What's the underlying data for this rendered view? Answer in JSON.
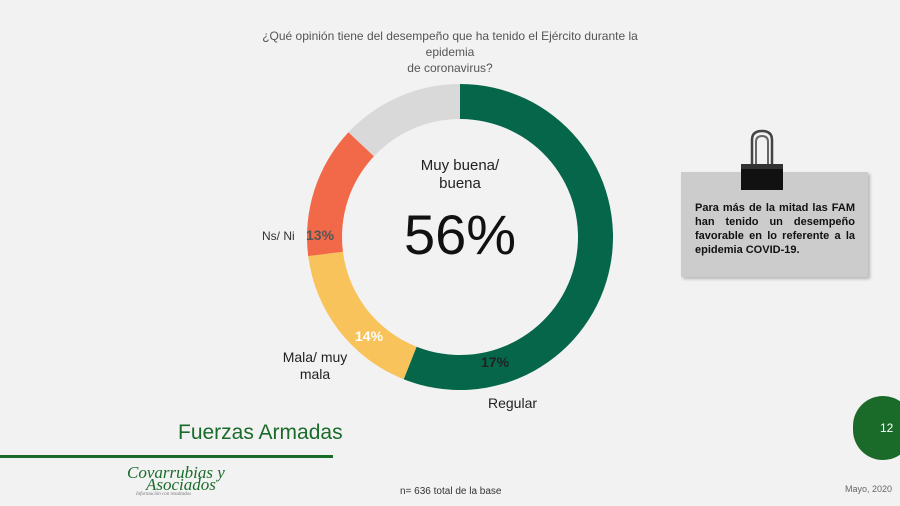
{
  "question": {
    "line1": "¿Qué opinión tiene del desempeño que ha tenido el Ejército durante la epidemia",
    "line2": "de coronavirus?"
  },
  "chart_data": {
    "type": "pie",
    "donut": true,
    "order": "clockwise from top",
    "slices": [
      {
        "label": "Muy buena/ buena",
        "value": 56,
        "text": "56%",
        "color": "#05664a"
      },
      {
        "label": "Regular",
        "value": 17,
        "text": "17%",
        "color": "#f7c35a"
      },
      {
        "label": "Mala/ muy mala",
        "value": 14,
        "text": "14%",
        "color": "#f2694a"
      },
      {
        "label": "Ns/ Ni",
        "value": 13,
        "text": "13%",
        "color": "#d9d9d9"
      }
    ]
  },
  "labels": {
    "center_category_line1": "Muy buena/",
    "center_category_line2": "buena",
    "center_pct": "56%",
    "ns_category": "Ns/ Ni",
    "ns_pct": "13%",
    "mala_category_line1": "Mala/ muy",
    "mala_category_line2": "mala",
    "mala_pct": "14%",
    "regular_category": "Regular",
    "regular_pct": "17%"
  },
  "note": {
    "text": "Para más de la mitad las FAM han tenido un desempeño favorable en lo referente a la epidemia COVID-19.",
    "icon": "binder-clip-icon"
  },
  "footer": {
    "section_title": "Fuerzas Armadas",
    "page_number": "12",
    "logo_line1": "Covarrubias y",
    "logo_line2": "Asociados",
    "logo_tagline": "Información con resultados",
    "base": "n= 636 total de la base",
    "date": "Mayo, 2020"
  },
  "colors": {
    "brand_green": "#1a6b2a",
    "background": "#f2f2f2"
  }
}
